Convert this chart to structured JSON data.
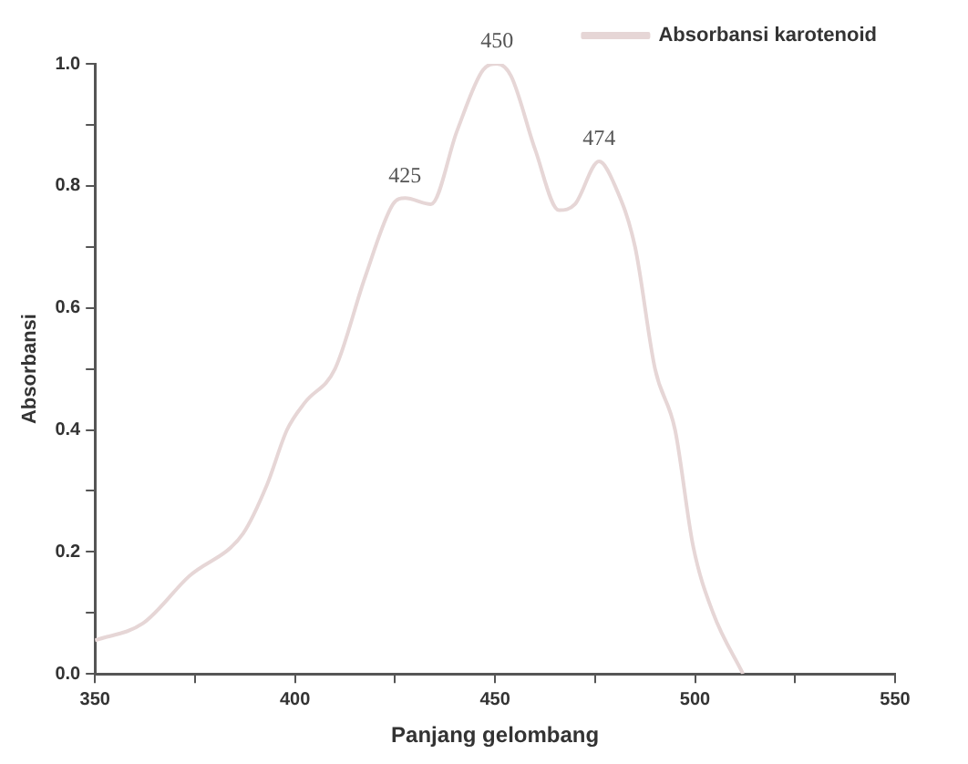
{
  "chart_data": {
    "type": "line",
    "xlabel": "Panjang gelombang",
    "ylabel": "Absorbansi",
    "x": [
      350,
      362,
      373.5,
      387,
      393,
      398,
      402.5,
      410,
      417.5,
      424.5,
      427.5,
      434,
      440.5,
      447,
      450.5,
      454,
      460,
      466,
      470,
      476,
      480,
      485,
      490,
      495,
      499.5,
      504.5,
      512
    ],
    "series": [
      {
        "name": "Absorbansi karotenoid",
        "color": "#e6d6d6",
        "values": [
          0.055,
          0.083,
          0.16,
          0.23,
          0.31,
          0.4,
          0.445,
          0.5,
          0.65,
          0.77,
          0.78,
          0.77,
          0.89,
          0.99,
          1.0,
          0.98,
          0.86,
          0.76,
          0.77,
          0.84,
          0.8,
          0.7,
          0.5,
          0.4,
          0.21,
          0.1,
          0.0
        ]
      }
    ],
    "xlim": [
      350,
      550
    ],
    "xticks": [
      350,
      {
        "value": 375,
        "label": null
      },
      400,
      {
        "value": 425,
        "label": null
      },
      450,
      {
        "value": 475,
        "label": null
      },
      500,
      {
        "value": 525,
        "label": null
      },
      550
    ],
    "ylim": [
      0,
      1.0
    ],
    "yticks": [
      {
        "value": 0,
        "label": "0.0"
      },
      {
        "value": 0.1,
        "label": null
      },
      {
        "value": 0.2,
        "label": "0.2"
      },
      {
        "value": 0.3,
        "label": null
      },
      {
        "value": 0.4,
        "label": "0.4"
      },
      {
        "value": 0.5,
        "label": null
      },
      {
        "value": 0.6,
        "label": "0.6"
      },
      {
        "value": 0.7,
        "label": null
      },
      {
        "value": 0.8,
        "label": "0.8"
      },
      {
        "value": 0.9,
        "label": null
      },
      {
        "value": 1.0,
        "label": "1.0"
      }
    ],
    "annotations": [
      {
        "text": "425",
        "x": 427.5,
        "y": 0.78
      },
      {
        "text": "450",
        "x": 450.5,
        "y": 1.0
      },
      {
        "text": "474",
        "x": 476,
        "y": 0.84
      }
    ],
    "grid": false,
    "legend": "top right",
    "marker": "none",
    "line_style": "solid"
  }
}
